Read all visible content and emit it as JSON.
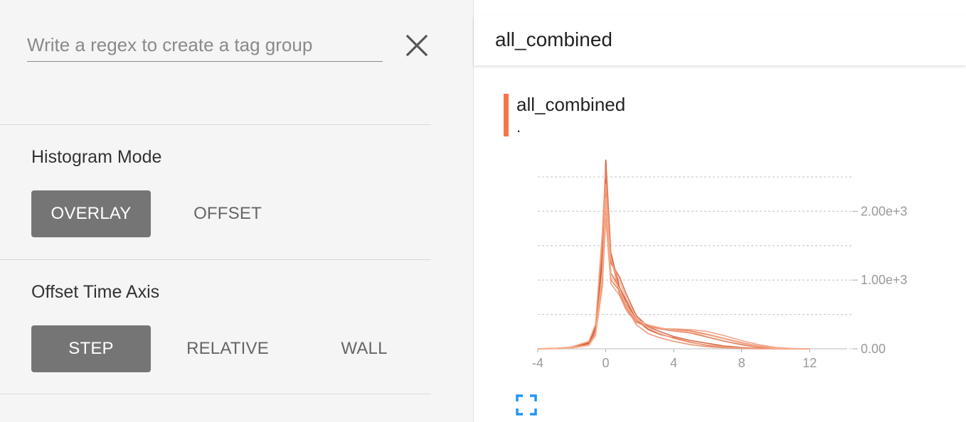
{
  "sidebar": {
    "search": {
      "placeholder": "Write a regex to create a tag group",
      "value": ""
    },
    "histogram_mode": {
      "title": "Histogram Mode",
      "options": [
        "OVERLAY",
        "OFFSET"
      ],
      "selected": "OVERLAY"
    },
    "offset_time_axis": {
      "title": "Offset Time Axis",
      "options": [
        "STEP",
        "RELATIVE",
        "WALL"
      ],
      "selected": "STEP"
    }
  },
  "main": {
    "header_title": "all_combined",
    "card": {
      "title": "all_combined",
      "subtitle": ".",
      "color": "#f4754a"
    }
  },
  "chart_data": {
    "type": "line",
    "title": "all_combined",
    "xlim": [
      -4,
      14
    ],
    "ylim": [
      0,
      2800
    ],
    "x_ticks": [
      "-4",
      "0",
      "4",
      "8",
      "12"
    ],
    "y_ticks": [
      "0.00",
      "1.00e+3",
      "2.00e+3"
    ],
    "y_tick_values": [
      0,
      1000,
      2000
    ],
    "x_tick_values": [
      -4,
      0,
      4,
      8,
      12
    ],
    "grid": true,
    "series_color_range": [
      "#c6451c",
      "#ffb595"
    ],
    "x": [
      -4,
      -3,
      -2,
      -1,
      -0.6,
      -0.2,
      0,
      0.3,
      0.8,
      1.2,
      1.8,
      2.5,
      3.2,
      4,
      5,
      6,
      7,
      8,
      9,
      10,
      11,
      12
    ],
    "series": [
      {
        "values": [
          0,
          5,
          20,
          80,
          320,
          1300,
          2750,
          1400,
          900,
          700,
          420,
          280,
          210,
          160,
          95,
          50,
          25,
          12,
          5,
          2,
          0,
          0
        ]
      },
      {
        "values": [
          0,
          6,
          22,
          90,
          300,
          1500,
          2500,
          1250,
          1050,
          800,
          480,
          320,
          250,
          180,
          120,
          80,
          40,
          20,
          10,
          4,
          1,
          0
        ]
      },
      {
        "values": [
          0,
          4,
          18,
          70,
          260,
          1200,
          2300,
          1100,
          900,
          650,
          430,
          340,
          290,
          260,
          230,
          170,
          110,
          60,
          25,
          8,
          2,
          0
        ]
      },
      {
        "values": [
          0,
          3,
          15,
          60,
          220,
          1000,
          2100,
          1000,
          850,
          600,
          400,
          330,
          300,
          280,
          260,
          210,
          150,
          90,
          40,
          12,
          3,
          0
        ]
      },
      {
        "values": [
          0,
          5,
          25,
          100,
          340,
          1700,
          2650,
          1350,
          800,
          600,
          350,
          220,
          160,
          110,
          60,
          30,
          15,
          6,
          2,
          0,
          0,
          0
        ]
      },
      {
        "values": [
          0,
          2,
          12,
          50,
          190,
          900,
          1900,
          950,
          780,
          560,
          380,
          320,
          290,
          290,
          280,
          250,
          190,
          120,
          60,
          20,
          5,
          0
        ]
      },
      {
        "values": [
          0,
          7,
          28,
          110,
          360,
          1600,
          2400,
          1300,
          980,
          740,
          460,
          300,
          220,
          150,
          90,
          55,
          28,
          14,
          6,
          2,
          0,
          0
        ]
      },
      {
        "values": [
          0,
          3,
          14,
          55,
          200,
          1100,
          2200,
          1050,
          880,
          630,
          420,
          350,
          310,
          270,
          240,
          200,
          140,
          80,
          35,
          10,
          2,
          0
        ]
      }
    ]
  }
}
